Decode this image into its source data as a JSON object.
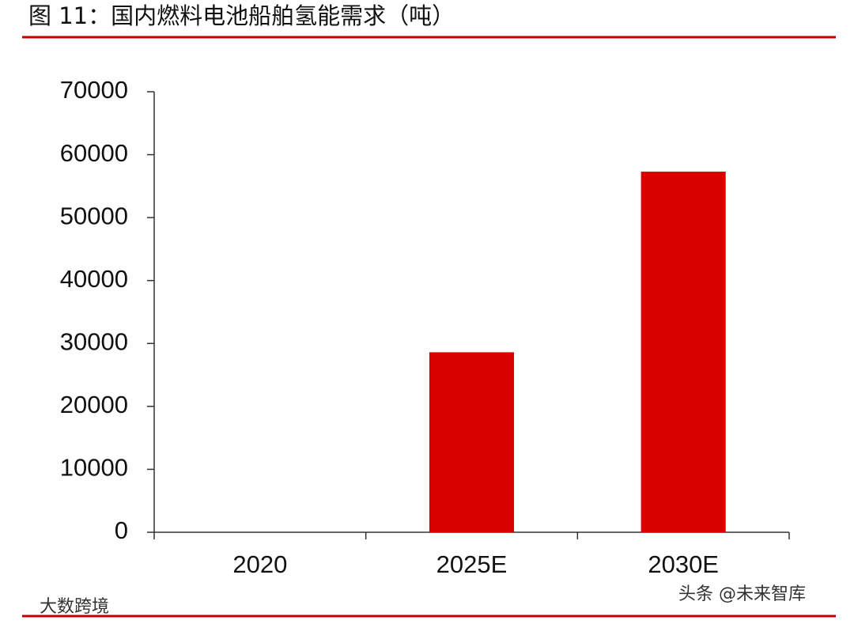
{
  "chart_data": {
    "type": "bar",
    "title": "图 11：国内燃料电池船舶氢能需求（吨）",
    "categories": [
      "2020",
      "2025E",
      "2030E"
    ],
    "values": [
      0,
      28600,
      57300
    ],
    "color": "#d90000",
    "ylim": [
      0,
      70000
    ],
    "yticks": [
      0,
      10000,
      20000,
      30000,
      40000,
      50000,
      60000,
      70000
    ],
    "watermarks": [
      "头条 @未来智库",
      "大数跨境"
    ]
  }
}
